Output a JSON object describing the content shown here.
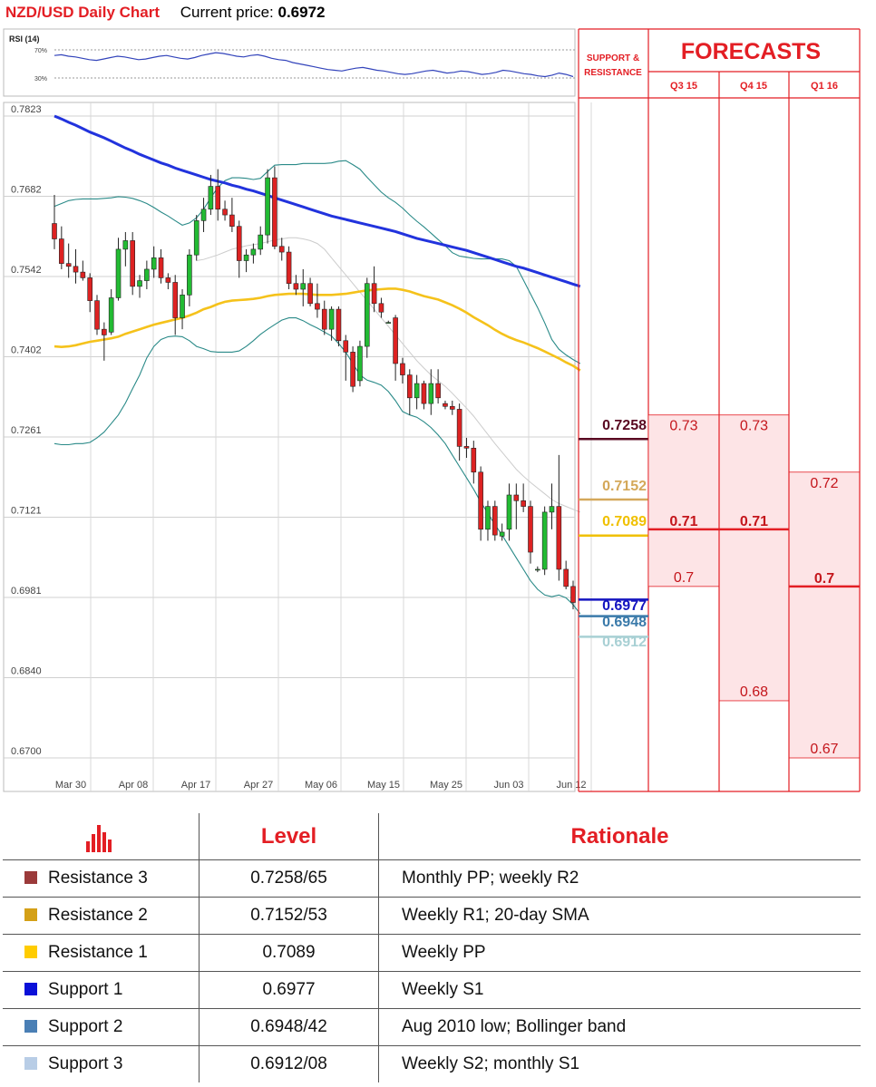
{
  "header": {
    "title": "NZD/USD Daily Chart",
    "price_label": "Current price:",
    "price_value": "0.6972"
  },
  "rsi": {
    "label": "RSI (14)",
    "levels": [
      "70%",
      "30%"
    ],
    "values": [
      62,
      63,
      61,
      60,
      58,
      56,
      55,
      57,
      59,
      61,
      60,
      58,
      56,
      57,
      59,
      61,
      62,
      60,
      58,
      57,
      59,
      62,
      64,
      66,
      65,
      63,
      61,
      60,
      62,
      63,
      61,
      58,
      56,
      55,
      52,
      50,
      48,
      46,
      44,
      42,
      41,
      40,
      42,
      44,
      45,
      43,
      41,
      40,
      38,
      36,
      35,
      36,
      38,
      40,
      41,
      39,
      37,
      38,
      40,
      39,
      37,
      35,
      36,
      38,
      41,
      40,
      38,
      36,
      35,
      33,
      32,
      34,
      37,
      35,
      32
    ]
  },
  "colors": {
    "bull": "#22bb33",
    "bear": "#dd2222",
    "sma200": "#2233dd",
    "sma50": "#f5c21b",
    "bollinger": "#2a8a88",
    "sma20": "#cccccc",
    "resistance3": "#5a0a22",
    "resistance2": "#d4a85a",
    "resistance1": "#f0c000",
    "support1": "#1515c0",
    "support2": "#3a7aaa",
    "support3": "#a8d0d4",
    "forecast_fill": "#fde4e6",
    "forecast_line": "#e31e24"
  },
  "chart_data": {
    "type": "candlestick",
    "title": "NZD/USD Daily Chart",
    "y_ticks": [
      "0.7823",
      "0.7682",
      "0.7542",
      "0.7402",
      "0.7261",
      "0.7121",
      "0.6981",
      "0.6840",
      "0.6700"
    ],
    "ylim": [
      0.67,
      0.7823
    ],
    "x_ticks": [
      "Mar 30",
      "Apr 08",
      "Apr 17",
      "Apr 27",
      "May 06",
      "May 15",
      "May 25",
      "Jun 03",
      "Jun 12"
    ],
    "candles": [
      {
        "o": 0.7635,
        "h": 0.7685,
        "l": 0.759,
        "c": 0.7608
      },
      {
        "o": 0.7608,
        "h": 0.763,
        "l": 0.7555,
        "c": 0.7565
      },
      {
        "o": 0.7565,
        "h": 0.76,
        "l": 0.754,
        "c": 0.756
      },
      {
        "o": 0.756,
        "h": 0.759,
        "l": 0.753,
        "c": 0.755
      },
      {
        "o": 0.755,
        "h": 0.757,
        "l": 0.7535,
        "c": 0.754
      },
      {
        "o": 0.754,
        "h": 0.7548,
        "l": 0.748,
        "c": 0.75
      },
      {
        "o": 0.75,
        "h": 0.751,
        "l": 0.744,
        "c": 0.745
      },
      {
        "o": 0.745,
        "h": 0.7462,
        "l": 0.7395,
        "c": 0.744
      },
      {
        "o": 0.7445,
        "h": 0.752,
        "l": 0.744,
        "c": 0.7505
      },
      {
        "o": 0.7505,
        "h": 0.761,
        "l": 0.75,
        "c": 0.759
      },
      {
        "o": 0.759,
        "h": 0.762,
        "l": 0.756,
        "c": 0.7605
      },
      {
        "o": 0.7605,
        "h": 0.762,
        "l": 0.751,
        "c": 0.7525
      },
      {
        "o": 0.7525,
        "h": 0.7545,
        "l": 0.7505,
        "c": 0.7535
      },
      {
        "o": 0.7535,
        "h": 0.757,
        "l": 0.752,
        "c": 0.7555
      },
      {
        "o": 0.7555,
        "h": 0.7595,
        "l": 0.754,
        "c": 0.7575
      },
      {
        "o": 0.7575,
        "h": 0.759,
        "l": 0.753,
        "c": 0.754
      },
      {
        "o": 0.754,
        "h": 0.7548,
        "l": 0.752,
        "c": 0.7532
      },
      {
        "o": 0.7532,
        "h": 0.7545,
        "l": 0.744,
        "c": 0.747
      },
      {
        "o": 0.747,
        "h": 0.752,
        "l": 0.745,
        "c": 0.751
      },
      {
        "o": 0.751,
        "h": 0.759,
        "l": 0.749,
        "c": 0.758
      },
      {
        "o": 0.758,
        "h": 0.765,
        "l": 0.757,
        "c": 0.764
      },
      {
        "o": 0.764,
        "h": 0.768,
        "l": 0.762,
        "c": 0.766
      },
      {
        "o": 0.766,
        "h": 0.772,
        "l": 0.765,
        "c": 0.77
      },
      {
        "o": 0.77,
        "h": 0.773,
        "l": 0.764,
        "c": 0.766
      },
      {
        "o": 0.766,
        "h": 0.7675,
        "l": 0.764,
        "c": 0.765
      },
      {
        "o": 0.765,
        "h": 0.768,
        "l": 0.762,
        "c": 0.763
      },
      {
        "o": 0.763,
        "h": 0.764,
        "l": 0.754,
        "c": 0.757
      },
      {
        "o": 0.757,
        "h": 0.759,
        "l": 0.755,
        "c": 0.758
      },
      {
        "o": 0.758,
        "h": 0.76,
        "l": 0.7565,
        "c": 0.759
      },
      {
        "o": 0.759,
        "h": 0.763,
        "l": 0.758,
        "c": 0.7615
      },
      {
        "o": 0.7615,
        "h": 0.773,
        "l": 0.76,
        "c": 0.7715
      },
      {
        "o": 0.7715,
        "h": 0.7735,
        "l": 0.759,
        "c": 0.7595
      },
      {
        "o": 0.7595,
        "h": 0.761,
        "l": 0.757,
        "c": 0.7585
      },
      {
        "o": 0.7585,
        "h": 0.7595,
        "l": 0.752,
        "c": 0.753
      },
      {
        "o": 0.753,
        "h": 0.7545,
        "l": 0.751,
        "c": 0.752
      },
      {
        "o": 0.752,
        "h": 0.7555,
        "l": 0.749,
        "c": 0.753
      },
      {
        "o": 0.753,
        "h": 0.754,
        "l": 0.749,
        "c": 0.7495
      },
      {
        "o": 0.7495,
        "h": 0.753,
        "l": 0.747,
        "c": 0.7485
      },
      {
        "o": 0.7485,
        "h": 0.75,
        "l": 0.744,
        "c": 0.745
      },
      {
        "o": 0.745,
        "h": 0.749,
        "l": 0.743,
        "c": 0.7485
      },
      {
        "o": 0.7485,
        "h": 0.749,
        "l": 0.742,
        "c": 0.743
      },
      {
        "o": 0.743,
        "h": 0.744,
        "l": 0.736,
        "c": 0.741
      },
      {
        "o": 0.741,
        "h": 0.742,
        "l": 0.734,
        "c": 0.735
      },
      {
        "o": 0.736,
        "h": 0.743,
        "l": 0.735,
        "c": 0.742
      },
      {
        "o": 0.742,
        "h": 0.754,
        "l": 0.74,
        "c": 0.753
      },
      {
        "o": 0.753,
        "h": 0.756,
        "l": 0.748,
        "c": 0.7495
      },
      {
        "o": 0.7495,
        "h": 0.7505,
        "l": 0.747,
        "c": 0.748
      },
      {
        "o": 0.7462,
        "h": 0.7465,
        "l": 0.746,
        "c": 0.7462
      },
      {
        "o": 0.747,
        "h": 0.7475,
        "l": 0.736,
        "c": 0.739
      },
      {
        "o": 0.739,
        "h": 0.74,
        "l": 0.7355,
        "c": 0.737
      },
      {
        "o": 0.737,
        "h": 0.738,
        "l": 0.73,
        "c": 0.733
      },
      {
        "o": 0.733,
        "h": 0.737,
        "l": 0.731,
        "c": 0.7355
      },
      {
        "o": 0.7355,
        "h": 0.736,
        "l": 0.731,
        "c": 0.732
      },
      {
        "o": 0.732,
        "h": 0.738,
        "l": 0.73,
        "c": 0.7355
      },
      {
        "o": 0.7355,
        "h": 0.738,
        "l": 0.732,
        "c": 0.733
      },
      {
        "o": 0.732,
        "h": 0.7325,
        "l": 0.731,
        "c": 0.7315
      },
      {
        "o": 0.7315,
        "h": 0.7325,
        "l": 0.73,
        "c": 0.731
      },
      {
        "o": 0.731,
        "h": 0.732,
        "l": 0.722,
        "c": 0.7245
      },
      {
        "o": 0.7245,
        "h": 0.726,
        "l": 0.7225,
        "c": 0.7242
      },
      {
        "o": 0.7242,
        "h": 0.7255,
        "l": 0.718,
        "c": 0.72
      },
      {
        "o": 0.72,
        "h": 0.721,
        "l": 0.708,
        "c": 0.71
      },
      {
        "o": 0.71,
        "h": 0.715,
        "l": 0.708,
        "c": 0.714
      },
      {
        "o": 0.714,
        "h": 0.715,
        "l": 0.708,
        "c": 0.709
      },
      {
        "o": 0.7088,
        "h": 0.711,
        "l": 0.708,
        "c": 0.7095
      },
      {
        "o": 0.71,
        "h": 0.718,
        "l": 0.708,
        "c": 0.716
      },
      {
        "o": 0.716,
        "h": 0.718,
        "l": 0.71,
        "c": 0.715
      },
      {
        "o": 0.715,
        "h": 0.718,
        "l": 0.713,
        "c": 0.714
      },
      {
        "o": 0.714,
        "h": 0.715,
        "l": 0.704,
        "c": 0.706
      },
      {
        "o": 0.703,
        "h": 0.7035,
        "l": 0.7025,
        "c": 0.703
      },
      {
        "o": 0.703,
        "h": 0.714,
        "l": 0.702,
        "c": 0.713
      },
      {
        "o": 0.713,
        "h": 0.718,
        "l": 0.71,
        "c": 0.714
      },
      {
        "o": 0.714,
        "h": 0.723,
        "l": 0.701,
        "c": 0.703
      },
      {
        "o": 0.703,
        "h": 0.7045,
        "l": 0.6995,
        "c": 0.7
      },
      {
        "o": 0.7,
        "h": 0.701,
        "l": 0.696,
        "c": 0.6972
      }
    ],
    "sma200": [
      0.7823,
      0.7818,
      0.7812,
      0.7807,
      0.7801,
      0.7795,
      0.779,
      0.7785,
      0.7779,
      0.7773,
      0.7767,
      0.7762,
      0.7756,
      0.7751,
      0.7746,
      0.7741,
      0.7737,
      0.7732,
      0.7728,
      0.7724,
      0.772,
      0.7716,
      0.7712,
      0.7709,
      0.7706,
      0.7702,
      0.7699,
      0.7695,
      0.7692,
      0.7688,
      0.7684,
      0.768,
      0.7676,
      0.7672,
      0.7668,
      0.7664,
      0.766,
      0.7656,
      0.7652,
      0.7648,
      0.7645,
      0.7642,
      0.7639,
      0.7636,
      0.7633,
      0.763,
      0.7627,
      0.7624,
      0.7621,
      0.7617,
      0.7613,
      0.7609,
      0.7606,
      0.7603,
      0.76,
      0.7597,
      0.7594,
      0.7591,
      0.7588,
      0.7584,
      0.758,
      0.7576,
      0.7572,
      0.7568,
      0.7564,
      0.756,
      0.7557,
      0.7553,
      0.7549,
      0.7545,
      0.7541,
      0.7537,
      0.7533,
      0.7529,
      0.7525
    ],
    "sma50": [
      0.742,
      0.7419,
      0.742,
      0.7422,
      0.7425,
      0.7428,
      0.743,
      0.7432,
      0.7434,
      0.7437,
      0.7442,
      0.7446,
      0.745,
      0.7454,
      0.7458,
      0.7461,
      0.7464,
      0.7467,
      0.747,
      0.7474,
      0.7479,
      0.7485,
      0.7489,
      0.7494,
      0.7498,
      0.75,
      0.7501,
      0.7502,
      0.7503,
      0.7505,
      0.7508,
      0.751,
      0.7511,
      0.7512,
      0.7512,
      0.7512,
      0.7511,
      0.751,
      0.751,
      0.751,
      0.7511,
      0.7512,
      0.7514,
      0.7516,
      0.7518,
      0.7519,
      0.752,
      0.7521,
      0.7521,
      0.7519,
      0.7516,
      0.7512,
      0.7508,
      0.7505,
      0.7502,
      0.7497,
      0.7492,
      0.7486,
      0.7479,
      0.7471,
      0.7464,
      0.7457,
      0.7449,
      0.7442,
      0.7436,
      0.7431,
      0.7427,
      0.7422,
      0.7417,
      0.7411,
      0.7405,
      0.7399,
      0.7392,
      0.7386,
      0.7378
    ],
    "bb_upper": [
      0.7665,
      0.767,
      0.7675,
      0.7677,
      0.7678,
      0.7678,
      0.7678,
      0.7679,
      0.768,
      0.7682,
      0.7681,
      0.7679,
      0.7675,
      0.767,
      0.7663,
      0.7655,
      0.7648,
      0.764,
      0.7632,
      0.7636,
      0.7645,
      0.766,
      0.768,
      0.7698,
      0.771,
      0.7715,
      0.7715,
      0.7714,
      0.7712,
      0.7714,
      0.7726,
      0.7737,
      0.7738,
      0.7738,
      0.7738,
      0.774,
      0.774,
      0.774,
      0.774,
      0.7741,
      0.7744,
      0.7745,
      0.7738,
      0.773,
      0.7716,
      0.7703,
      0.769,
      0.768,
      0.7672,
      0.7662,
      0.765,
      0.7639,
      0.7629,
      0.7618,
      0.7607,
      0.7596,
      0.7584,
      0.7578,
      0.7576,
      0.7574,
      0.7573,
      0.7573,
      0.7573,
      0.7573,
      0.757,
      0.756,
      0.7536,
      0.7512,
      0.7488,
      0.7461,
      0.7432,
      0.7415,
      0.7405,
      0.7397,
      0.739
    ],
    "bb_lower": [
      0.725,
      0.7248,
      0.7248,
      0.725,
      0.725,
      0.7252,
      0.726,
      0.727,
      0.7285,
      0.73,
      0.7321,
      0.7346,
      0.737,
      0.74,
      0.742,
      0.7432,
      0.7437,
      0.7438,
      0.7437,
      0.743,
      0.742,
      0.7416,
      0.7411,
      0.741,
      0.741,
      0.741,
      0.7412,
      0.742,
      0.743,
      0.7441,
      0.745,
      0.7458,
      0.7466,
      0.747,
      0.747,
      0.7465,
      0.7458,
      0.7452,
      0.7445,
      0.7438,
      0.7425,
      0.741,
      0.739,
      0.737,
      0.7361,
      0.7357,
      0.7352,
      0.7341,
      0.7325,
      0.7306,
      0.73,
      0.7296,
      0.7288,
      0.7278,
      0.7265,
      0.725,
      0.723,
      0.721,
      0.719,
      0.717,
      0.7148,
      0.7128,
      0.7108,
      0.709,
      0.707,
      0.705,
      0.703,
      0.701,
      0.6995,
      0.6985,
      0.6982,
      0.6985,
      0.698,
      0.6968,
      0.6952
    ],
    "sma20": [
      null,
      null,
      null,
      null,
      null,
      null,
      null,
      null,
      null,
      null,
      null,
      null,
      null,
      null,
      null,
      null,
      null,
      null,
      null,
      null,
      0.757,
      0.7572,
      0.7576,
      0.758,
      0.7585,
      0.759,
      0.7593,
      0.7596,
      0.7598,
      0.76,
      0.7603,
      0.7606,
      0.7608,
      0.761,
      0.761,
      0.7608,
      0.7605,
      0.76,
      0.759,
      0.7575,
      0.756,
      0.7545,
      0.753,
      0.7515,
      0.75,
      0.7485,
      0.747,
      0.7455,
      0.744,
      0.7425,
      0.741,
      0.7395,
      0.7382,
      0.737,
      0.736,
      0.735,
      0.7338,
      0.7325,
      0.7312,
      0.7298,
      0.7282,
      0.7266,
      0.725,
      0.7235,
      0.722,
      0.7205,
      0.7193,
      0.7182,
      0.7172,
      0.7162,
      0.7152,
      0.7145,
      0.714,
      0.7135,
      0.713
    ]
  },
  "support_resistance": {
    "title_line1": "SUPPORT &",
    "title_line2": "RESISTANCE",
    "levels": [
      {
        "label": "0.7258",
        "value": 0.7258,
        "color": "#5a0a22"
      },
      {
        "label": "0.7152",
        "value": 0.7152,
        "color": "#d4a85a"
      },
      {
        "label": "0.7089",
        "value": 0.7089,
        "color": "#f0c000"
      },
      {
        "label": "0.6977",
        "value": 0.6977,
        "color": "#1515c0"
      },
      {
        "label": "0.6948",
        "value": 0.6948,
        "color": "#3a7aaa"
      },
      {
        "label": "0.6912",
        "value": 0.6912,
        "color": "#a8d0d4"
      }
    ]
  },
  "forecasts": {
    "title": "FORECASTS",
    "columns": [
      {
        "label": "Q3 15",
        "high": 0.73,
        "mid": 0.71,
        "low": 0.7,
        "high_label": "0.73",
        "mid_label": "0.71",
        "low_label": "0.7"
      },
      {
        "label": "Q4 15",
        "high": 0.73,
        "mid": 0.71,
        "low": 0.68,
        "high_label": "0.73",
        "mid_label": "0.71",
        "low_label": "0.68"
      },
      {
        "label": "Q1 16",
        "high": 0.72,
        "mid": 0.7,
        "low": 0.67,
        "high_label": "0.72",
        "mid_label": "0.7",
        "low_label": "0.67"
      }
    ]
  },
  "table": {
    "headers": {
      "level": "Level",
      "rationale": "Rationale"
    },
    "rows": [
      {
        "name": "Resistance 3",
        "color": "#9b3a3a",
        "level": "0.7258/65",
        "rationale": "Monthly PP; weekly R2"
      },
      {
        "name": "Resistance 2",
        "color": "#d4a017",
        "level": "0.7152/53",
        "rationale": "Weekly R1; 20-day SMA"
      },
      {
        "name": "Resistance 1",
        "color": "#ffcc00",
        "level": "0.7089",
        "rationale": "Weekly PP"
      },
      {
        "name": "Support 1",
        "color": "#0a10d8",
        "level": "0.6977",
        "rationale": "Weekly S1"
      },
      {
        "name": "Support 2",
        "color": "#4a7fb5",
        "level": "0.6948/42",
        "rationale": "Aug 2010 low; Bollinger band"
      },
      {
        "name": "Support 3",
        "color": "#b8cde6",
        "level": "0.6912/08",
        "rationale": "Weekly S2; monthly S1"
      }
    ]
  }
}
